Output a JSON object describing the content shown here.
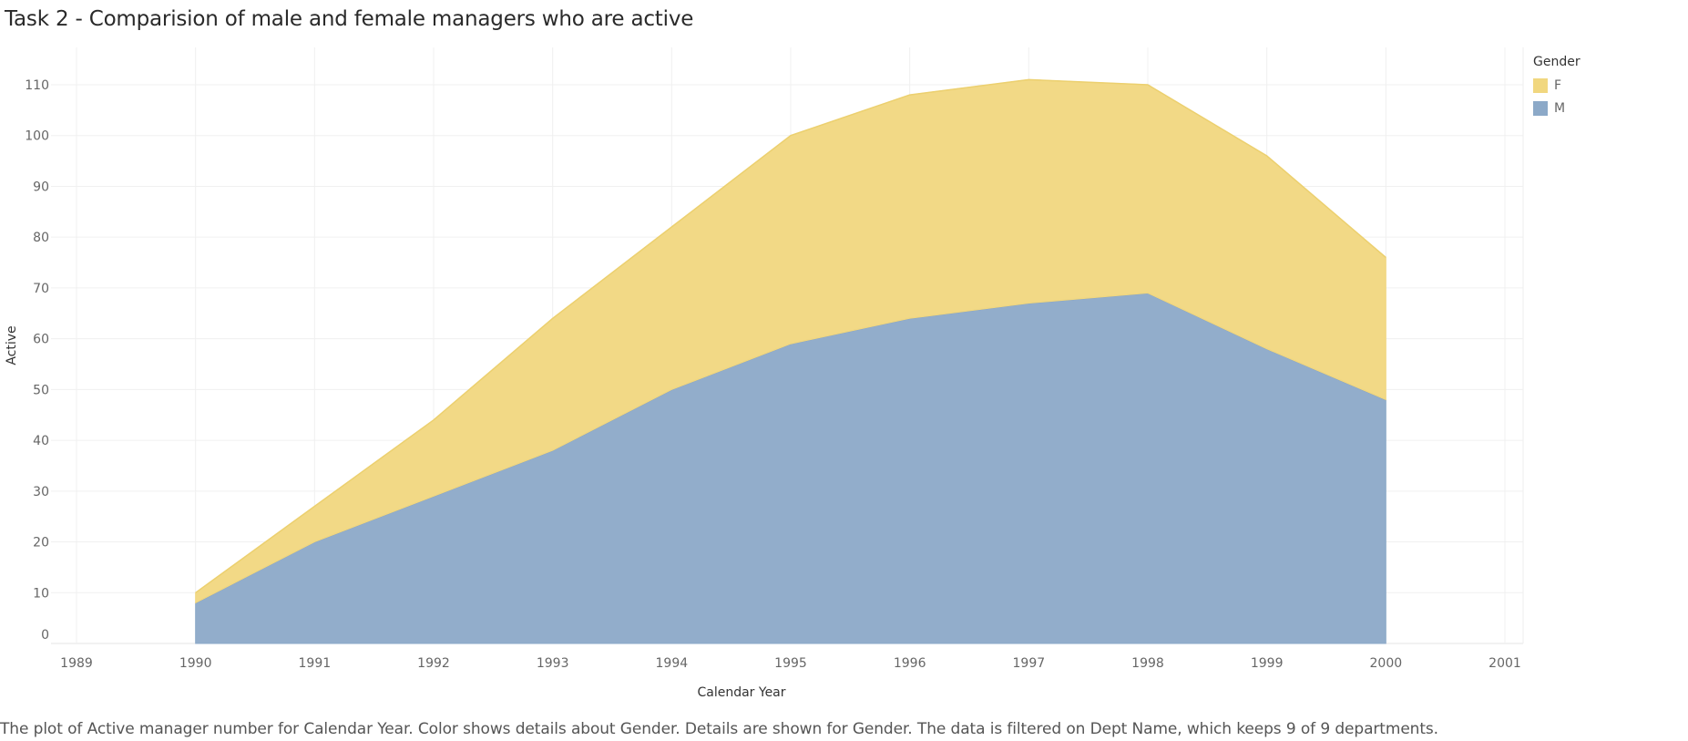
{
  "title": "Task 2 - Comparision of male and female managers who are active",
  "caption": "The plot of  Active manager number for Calendar Year.  Color shows details about Gender.  Details are shown for Gender. The data is filtered on Dept Name, which keeps 9 of 9 departments.",
  "legend": {
    "title": "Gender",
    "items": [
      {
        "label": "F",
        "color": "#f1d77f"
      },
      {
        "label": "M",
        "color": "#8ca9c8"
      }
    ]
  },
  "chart_data": {
    "type": "area",
    "stacked": true,
    "xlabel": "Calendar Year",
    "ylabel": "Active",
    "x": [
      1990,
      1991,
      1992,
      1993,
      1994,
      1995,
      1996,
      1997,
      1998,
      1999,
      2000
    ],
    "xlim": [
      1989,
      2001
    ],
    "x_ticks": [
      1989,
      1990,
      1991,
      1992,
      1993,
      1994,
      1995,
      1996,
      1997,
      1998,
      1999,
      2000,
      2001
    ],
    "ylim": [
      0,
      110
    ],
    "y_ticks": [
      0,
      10,
      20,
      30,
      40,
      50,
      60,
      70,
      80,
      90,
      100,
      110
    ],
    "grid": true,
    "legend_position": "top-right",
    "series": [
      {
        "name": "M",
        "color": "#8ca9c8",
        "values": [
          8,
          20,
          29,
          38,
          50,
          59,
          64,
          67,
          69,
          58,
          48
        ]
      },
      {
        "name": "F",
        "color": "#f1d77f",
        "values": [
          2,
          7,
          15,
          26,
          32,
          41,
          44,
          44,
          41,
          38,
          28
        ]
      }
    ]
  }
}
